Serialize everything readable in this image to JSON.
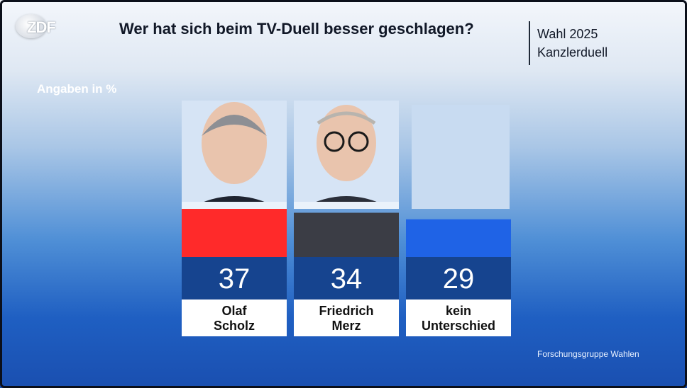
{
  "header": {
    "logo": "ZDF",
    "title": "Wer hat sich beim TV-Duell besser geschlagen?",
    "series_name": "Wahl 2025",
    "series_sub": "Kanzlerduell"
  },
  "units_label": "Angaben in %",
  "source": "Forschungsgruppe Wahlen",
  "chart_data": {
    "type": "bar",
    "title": "Wer hat sich beim TV-Duell besser geschlagen?",
    "xlabel": "",
    "ylabel": "Angaben in %",
    "ylim": [
      0,
      100
    ],
    "categories": [
      "Olaf Scholz",
      "Friedrich Merz",
      "kein Unterschied"
    ],
    "values": [
      37,
      34,
      29
    ],
    "colors": [
      "#ff2a2a",
      "#3b3d45",
      "#1f63e6"
    ],
    "labels": [
      {
        "line1": "Olaf",
        "line2": "Scholz"
      },
      {
        "line1": "Friedrich",
        "line2": "Merz"
      },
      {
        "line1": "kein",
        "line2": "Unterschied"
      }
    ]
  },
  "colors": {
    "value_box": "#16448f",
    "photo_bg": "#d6e4f5",
    "empty_panel": "#c8dbf1"
  },
  "icons": {
    "logo": "zdf-logo-icon",
    "portrait_1": "scholz-portrait-icon",
    "portrait_2": "merz-portrait-icon"
  }
}
